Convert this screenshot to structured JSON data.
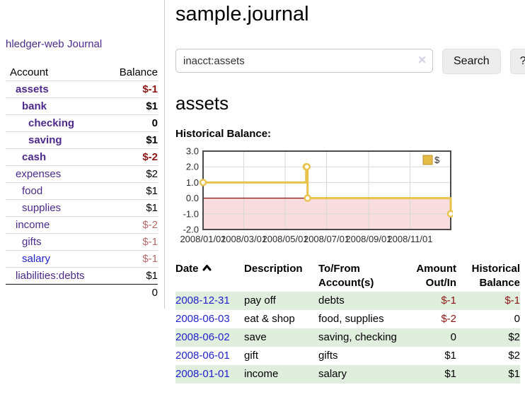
{
  "brand": {
    "label": "hledger-web"
  },
  "nav": {
    "journal": "Journal"
  },
  "sidebar": {
    "headers": {
      "account": "Account",
      "balance": "Balance"
    },
    "accounts": [
      {
        "name": "assets",
        "balance": "$-1"
      },
      {
        "name": "bank",
        "balance": "$1"
      },
      {
        "name": "checking",
        "balance": "0"
      },
      {
        "name": "saving",
        "balance": "$1"
      },
      {
        "name": "cash",
        "balance": "$-2"
      },
      {
        "name": "expenses",
        "balance": "$2"
      },
      {
        "name": "food",
        "balance": "$1"
      },
      {
        "name": "supplies",
        "balance": "$1"
      },
      {
        "name": "income",
        "balance": "$-2"
      },
      {
        "name": "gifts",
        "balance": "$-1"
      },
      {
        "name": "salary",
        "balance": "$-1"
      },
      {
        "name": "liabilities:debts",
        "balance": "$1"
      }
    ],
    "total": "0"
  },
  "main": {
    "title": "sample.journal",
    "account_heading": "assets",
    "chart_heading": "Historical Balance:"
  },
  "search": {
    "query": "inacct:assets",
    "clear": "✕",
    "search_label": "Search",
    "help_label": "?"
  },
  "chart_data": {
    "type": "line",
    "title": "Historical Balance:",
    "x_range": [
      "2008-01-01",
      "2008-12-31"
    ],
    "x_ticks": [
      "2008/01/01",
      "2008/03/01",
      "2008/05/01",
      "2008/07/01",
      "2008/09/01",
      "2008/11/01"
    ],
    "y_ticks": [
      3.0,
      2.0,
      1.0,
      0.0,
      -1.0,
      -2.0
    ],
    "ylim": [
      -2,
      3
    ],
    "grid": true,
    "legend": {
      "position": "top-right",
      "label": "$",
      "swatch_color": "#e5bc45",
      "swatch_border": "#b8922c"
    },
    "colors": {
      "line": "#e8c24a",
      "marker_fill": "#ffffff",
      "negative_fill": "#f9dcdd",
      "zero_line": "#8f1d1d",
      "grid_line": "#d8d8d8",
      "border": "#4a4a4a"
    },
    "series": [
      {
        "name": "$",
        "points": [
          {
            "date": "2008-01-01",
            "value": 1
          },
          {
            "date": "2008-06-01",
            "value": 2
          },
          {
            "date": "2008-06-02",
            "value": 2
          },
          {
            "date": "2008-06-03",
            "value": 0
          },
          {
            "date": "2008-12-31",
            "value": -1
          }
        ]
      }
    ]
  },
  "register": {
    "headers": {
      "date": "Date",
      "description": "Description",
      "accounts": "To/From Account(s)",
      "amount": "Amount Out/In",
      "balance": "Historical Balance"
    },
    "sort_icon": "chevron-up",
    "rows": [
      {
        "date": "2008-12-31",
        "description": "pay off",
        "accounts": "debts",
        "amount": "$-1",
        "balance": "$-1"
      },
      {
        "date": "2008-06-03",
        "description": "eat & shop",
        "accounts": "food, supplies",
        "amount": "$-2",
        "balance": "0"
      },
      {
        "date": "2008-06-02",
        "description": "save",
        "accounts": "saving, checking",
        "amount": "0",
        "balance": "$2"
      },
      {
        "date": "2008-06-01",
        "description": "gift",
        "accounts": "gifts",
        "amount": "$1",
        "balance": "$2"
      },
      {
        "date": "2008-01-01",
        "description": "income",
        "accounts": "salary",
        "amount": "$1",
        "balance": "$1"
      }
    ]
  }
}
